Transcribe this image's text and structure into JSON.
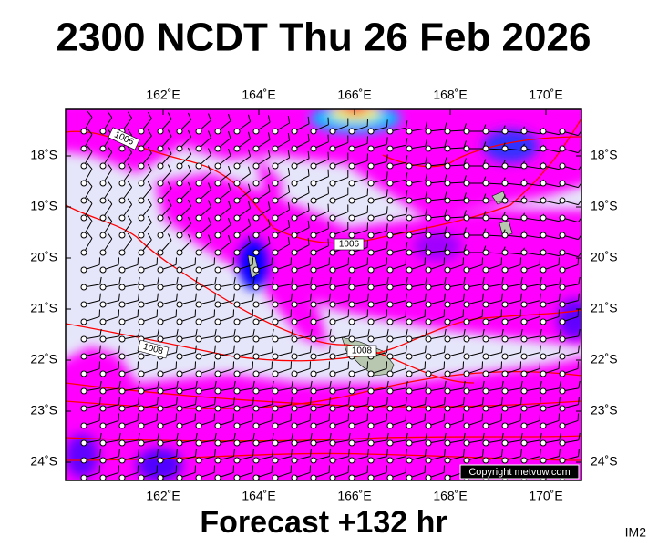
{
  "title": "2300 NCDT Thu 26 Feb 2026",
  "map": {
    "x_ticks": [
      "162˚E",
      "164˚E",
      "166˚E",
      "168˚E",
      "170˚E"
    ],
    "y_ticks": [
      "18˚S",
      "19˚S",
      "20˚S",
      "21˚S",
      "22˚S",
      "23˚S",
      "24˚S"
    ],
    "isobar_labels": [
      "1006",
      "1006",
      "1008",
      "1008"
    ],
    "copyright": "Copyright metvuw.com"
  },
  "footer": {
    "forecast": "Forecast +132 hr",
    "image_id": "IM2"
  }
}
